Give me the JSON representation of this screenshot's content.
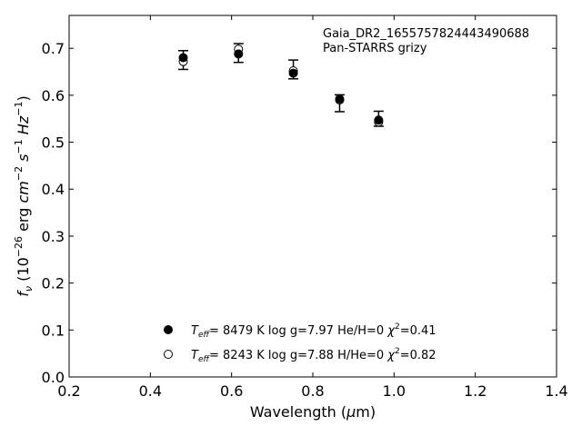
{
  "chart_data": {
    "type": "scatter",
    "annotation_lines": [
      "Gaia_DR2_1655757824443490688",
      "Pan-STARRS grizy"
    ],
    "xlabel": {
      "main": "Wavelength (",
      "mu": "μ",
      "unit": "m)"
    },
    "ylabel": {
      "f": "f",
      "nu": "ν",
      "open": " (10",
      "exp26": "−26",
      "erg": " erg ",
      "cm": "cm",
      "exp2": "−2",
      "s": " s",
      "exp1": "−1",
      "hz": " Hz",
      "exp1b": "−1",
      "close": ")"
    },
    "xlim": [
      0.2,
      1.4
    ],
    "ylim": [
      0.0,
      0.77
    ],
    "x_ticks": [
      0.2,
      0.4,
      0.6,
      0.8,
      1.0,
      1.2,
      1.4
    ],
    "x_tick_labels": [
      "0.2",
      "0.4",
      "0.6",
      "0.8",
      "1.0",
      "1.2",
      "1.4"
    ],
    "y_ticks": [
      0.0,
      0.1,
      0.2,
      0.3,
      0.4,
      0.5,
      0.6,
      0.7
    ],
    "y_tick_labels": [
      "0.0",
      "0.1",
      "0.2",
      "0.3",
      "0.4",
      "0.5",
      "0.6",
      "0.7"
    ],
    "observed": {
      "x": [
        0.481,
        0.617,
        0.752,
        0.866,
        0.962
      ],
      "y": [
        0.675,
        0.69,
        0.655,
        0.583,
        0.55
      ],
      "yerr": [
        0.02,
        0.02,
        0.02,
        0.018,
        0.016
      ]
    },
    "series": [
      {
        "marker": "filled",
        "x": [
          0.481,
          0.617,
          0.752,
          0.866,
          0.962
        ],
        "y": [
          0.68,
          0.688,
          0.647,
          0.592,
          0.547
        ],
        "legend": {
          "teff": "T",
          "eff": "eff",
          "rest": "=  8479 K  log g=7.97  He/H=0  ",
          "chi": "χ",
          "sup": "2",
          "chival": "=0.41"
        }
      },
      {
        "marker": "open",
        "x": [
          0.481,
          0.617,
          0.752,
          0.866,
          0.962
        ],
        "y": [
          0.672,
          0.698,
          0.652,
          0.59,
          0.543
        ],
        "legend": {
          "teff": "T",
          "eff": "eff",
          "rest": "=  8243 K  log g=7.88  H/He=0  ",
          "chi": "χ",
          "sup": "2",
          "chival": "=0.82"
        }
      }
    ],
    "grid": false,
    "legend_placement": "lower-center"
  }
}
